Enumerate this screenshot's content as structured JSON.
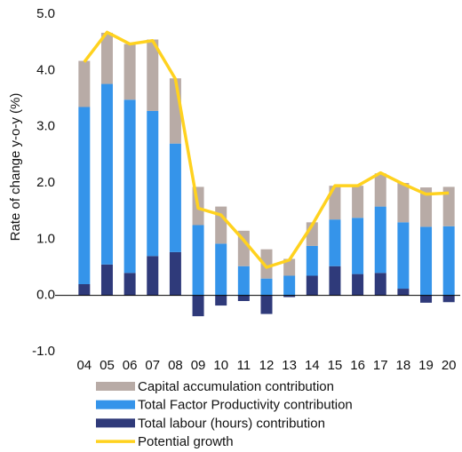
{
  "chart_data": {
    "type": "bar",
    "stacked": true,
    "y_label": "Rate of change y-o-y (%)",
    "categories": [
      "04",
      "05",
      "06",
      "07",
      "08",
      "09",
      "10",
      "11",
      "12",
      "13",
      "14",
      "15",
      "16",
      "17",
      "18",
      "19",
      "20"
    ],
    "series": [
      {
        "name": "Capital accumulation contribution",
        "color": "#b8aba6",
        "type": "bar",
        "values": [
          0.82,
          0.91,
          0.99,
          1.27,
          1.16,
          0.68,
          0.66,
          0.63,
          0.52,
          0.3,
          0.42,
          0.6,
          0.57,
          0.59,
          0.7,
          0.7,
          0.7
        ]
      },
      {
        "name": "Total Factor Productivity contribution",
        "color": "#3594ea",
        "type": "bar",
        "values": [
          3.15,
          3.21,
          3.08,
          2.58,
          1.93,
          1.25,
          0.92,
          0.52,
          0.3,
          0.35,
          0.53,
          0.83,
          1.0,
          1.18,
          1.18,
          1.22,
          1.23
        ]
      },
      {
        "name": "Total labour (hours) contribution",
        "color": "#2f3a7a",
        "type": "bar",
        "values": [
          0.2,
          0.55,
          0.4,
          0.7,
          0.77,
          -0.37,
          -0.18,
          -0.1,
          -0.33,
          -0.03,
          0.35,
          0.52,
          0.38,
          0.4,
          0.12,
          -0.13,
          -0.12
        ]
      },
      {
        "name": "Potential growth",
        "color": "#ffd21f",
        "type": "line",
        "values": [
          4.15,
          4.68,
          4.47,
          4.53,
          3.85,
          1.55,
          1.43,
          0.98,
          0.5,
          0.63,
          1.25,
          1.95,
          1.95,
          2.18,
          1.98,
          1.8,
          1.82
        ]
      }
    ],
    "ylim": [
      -1,
      5
    ],
    "yticks": [
      {
        "value": -1,
        "label": "-1.0"
      },
      {
        "value": 0,
        "label": "0.0"
      },
      {
        "value": 1,
        "label": "1.0"
      },
      {
        "value": 2,
        "label": "2.0"
      },
      {
        "value": 3,
        "label": "3.0"
      },
      {
        "value": 4,
        "label": "4.0"
      },
      {
        "value": 5,
        "label": "5.0"
      }
    ],
    "grid": false,
    "legend": "bottom"
  }
}
